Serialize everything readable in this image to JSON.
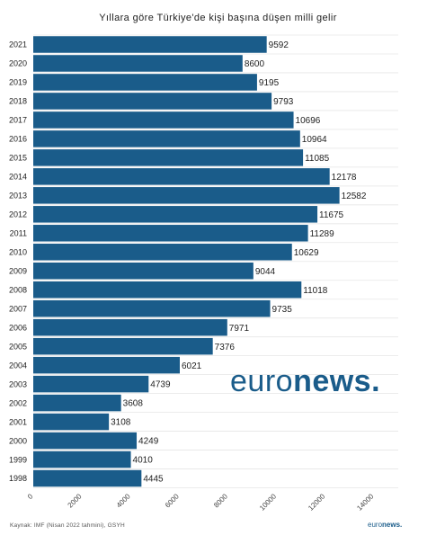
{
  "chart_data": {
    "type": "bar",
    "orientation": "horizontal",
    "title": "Yıllara göre Türkiye'de kişi başına düşen milli gelir",
    "categories": [
      "2021",
      "2020",
      "2019",
      "2018",
      "2017",
      "2016",
      "2015",
      "2014",
      "2013",
      "2012",
      "2011",
      "2010",
      "2009",
      "2008",
      "2007",
      "2006",
      "2005",
      "2004",
      "2003",
      "2002",
      "2001",
      "2000",
      "1999",
      "1998"
    ],
    "values": [
      9592,
      8600,
      9195,
      9793,
      10696,
      10964,
      11085,
      12178,
      12582,
      11675,
      11289,
      10629,
      9044,
      11018,
      9735,
      7971,
      7376,
      6021,
      4739,
      3608,
      3108,
      4249,
      4010,
      4445
    ],
    "xlim": [
      0,
      14000
    ],
    "xticks": [
      "0",
      "2000",
      "4000",
      "6000",
      "8000",
      "10000",
      "12000",
      "14000"
    ],
    "grid": true,
    "bar_color": "#1a5c8a"
  },
  "source": "Kaynak: IMF (Nisan 2022 tahmini), GSYH",
  "watermark": {
    "part1": "euro",
    "part2": "news",
    "dot": "."
  },
  "footer_logo": {
    "part1": "euro",
    "part2": "news."
  }
}
